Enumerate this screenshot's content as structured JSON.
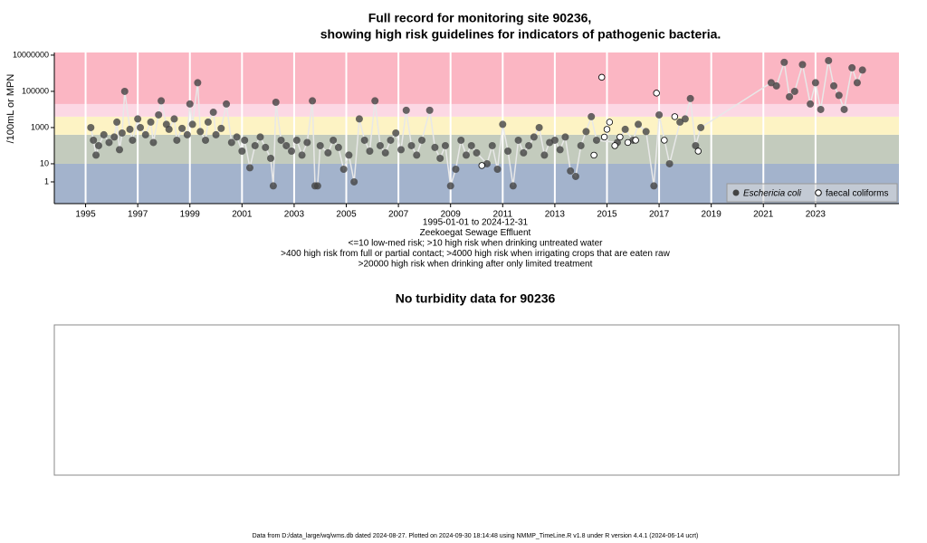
{
  "chart_data": [
    {
      "type": "scatter",
      "title": "Full record for monitoring site 90236,",
      "subtitle": "showing high risk guidelines for indicators of pathogenic bacteria.",
      "y_label": "/100mL or MPN",
      "notes": [
        "1995-01-01 to 2024-12-31",
        "Zeekoegat Sewage Effluent",
        "<=10 low-med risk; >10 high risk when drinking untreated water",
        ">400 high risk from full or partial contact; >4000 high risk when irrigating crops that are eaten raw",
        ">20000 high risk when drinking after only limited treatment"
      ],
      "log_y": true,
      "xlim": [
        1993.8,
        2026.2
      ],
      "xticks": [
        1995,
        1997,
        1999,
        2001,
        2003,
        2005,
        2007,
        2009,
        2011,
        2013,
        2015,
        2017,
        2019,
        2021,
        2023
      ],
      "ylim": [
        0.063,
        14000000
      ],
      "yticks": [
        10000000,
        100000,
        1000,
        10,
        1
      ],
      "grid": true,
      "legend": "bottom-right",
      "bands": [
        {
          "from": 0.063,
          "to": 10,
          "color": "#a3b3cc"
        },
        {
          "from": 10,
          "to": 400,
          "color": "#c3cbbd"
        },
        {
          "from": 400,
          "to": 4000,
          "color": "#fdf3c4"
        },
        {
          "from": 4000,
          "to": 20000,
          "color": "#fcd8e4"
        },
        {
          "from": 20000,
          "to": 14000000,
          "color": "#fbb6c3"
        }
      ],
      "series": [
        {
          "name": "Eschericia coli",
          "color": "#444444",
          "x": [
            1995.2,
            1995.3,
            1995.4,
            1995.5,
            1995.7,
            1995.9,
            1996.1,
            1996.2,
            1996.3,
            1996.4,
            1996.5,
            1996.7,
            1996.8,
            1997.0,
            1997.1,
            1997.3,
            1997.5,
            1997.6,
            1997.8,
            1997.9,
            1998.1,
            1998.2,
            1998.4,
            1998.5,
            1998.7,
            1998.9,
            1999.0,
            1999.1,
            1999.3,
            1999.4,
            1999.6,
            1999.7,
            1999.9,
            2000.0,
            2000.2,
            2000.4,
            2000.6,
            2000.8,
            2001.0,
            2001.1,
            2001.3,
            2001.5,
            2001.7,
            2001.9,
            2002.1,
            2002.2,
            2002.3,
            2002.5,
            2002.7,
            2002.9,
            2003.1,
            2003.3,
            2003.5,
            2003.7,
            2003.8,
            2003.9,
            2004.0,
            2004.3,
            2004.5,
            2004.7,
            2004.9,
            2005.1,
            2005.3,
            2005.5,
            2005.7,
            2005.9,
            2006.1,
            2006.3,
            2006.5,
            2006.7,
            2006.9,
            2007.1,
            2007.3,
            2007.5,
            2007.7,
            2007.9,
            2008.2,
            2008.4,
            2008.6,
            2008.8,
            2009.0,
            2009.2,
            2009.4,
            2009.6,
            2009.8,
            2010.0,
            2010.4,
            2010.6,
            2010.8,
            2011.0,
            2011.2,
            2011.4,
            2011.6,
            2011.8,
            2012.0,
            2012.2,
            2012.4,
            2012.6,
            2012.8,
            2013.0,
            2013.2,
            2013.4,
            2013.6,
            2013.8,
            2014.0,
            2014.2,
            2014.4,
            2014.6,
            2015.4,
            2015.7,
            2016.0,
            2016.2,
            2016.5,
            2016.8,
            2017.0,
            2017.4,
            2017.8,
            2018.0,
            2018.2,
            2018.4,
            2018.6,
            2021.3,
            2021.5,
            2021.8,
            2022.0,
            2022.2,
            2022.5,
            2022.8,
            2023.0,
            2023.2,
            2023.5,
            2023.7,
            2023.9,
            2024.1,
            2024.4,
            2024.6,
            2024.8
          ],
          "values": [
            1000,
            200,
            30,
            100,
            400,
            150,
            300,
            2000,
            60,
            500,
            100000,
            800,
            200,
            3000,
            1000,
            400,
            2000,
            150,
            5000,
            30000,
            1500,
            800,
            3000,
            200,
            900,
            400,
            20000,
            1500,
            300000,
            600,
            200,
            2000,
            7000,
            400,
            900,
            20000,
            150,
            300,
            50,
            200,
            6,
            100,
            300,
            80,
            20,
            0.6,
            25000,
            200,
            100,
            50,
            200,
            30,
            150,
            30000,
            0.6,
            0.6,
            100,
            40,
            200,
            80,
            5,
            30,
            1,
            3000,
            200,
            50,
            30000,
            100,
            40,
            200,
            500,
            60,
            9000,
            100,
            30,
            200,
            9000,
            80,
            20,
            100,
            0.6,
            5,
            200,
            30,
            100,
            40,
            10,
            100,
            5,
            1500,
            50,
            0.6,
            200,
            40,
            100,
            300,
            1000,
            30,
            150,
            200,
            60,
            300,
            4,
            2,
            100,
            600,
            4000,
            200,
            150,
            800,
            200,
            1500,
            600,
            0.6,
            5000,
            10,
            2000,
            3000,
            40000,
            100,
            1000,
            300000,
            200000,
            4000000,
            50000,
            100000,
            3000000,
            20000,
            300000,
            10000,
            5000000,
            200000,
            60000,
            10000,
            2000000,
            300000,
            1500000
          ]
        },
        {
          "name": "faecal coliforms",
          "color": "#000000",
          "x": [
            2010.2,
            2014.5,
            2014.8,
            2014.9,
            2015.0,
            2015.1,
            2015.3,
            2015.5,
            2015.8,
            2016.1,
            2016.9,
            2017.2,
            2017.6,
            2018.5
          ],
          "values": [
            8,
            30,
            600000,
            300,
            800,
            2000,
            100,
            300,
            150,
            200,
            80000,
            200,
            4000,
            50
          ]
        }
      ]
    },
    {
      "type": "empty",
      "title": "No turbidity data for 90236"
    }
  ],
  "footer": "Data from D:/data_large/wq/wms.db dated 2024-08-27. Plotted on 2024-09-30 18:14:48 using NMMP_TimeLine.R v1.8 under R version 4.4.1 (2024-06-14 ucrt)"
}
